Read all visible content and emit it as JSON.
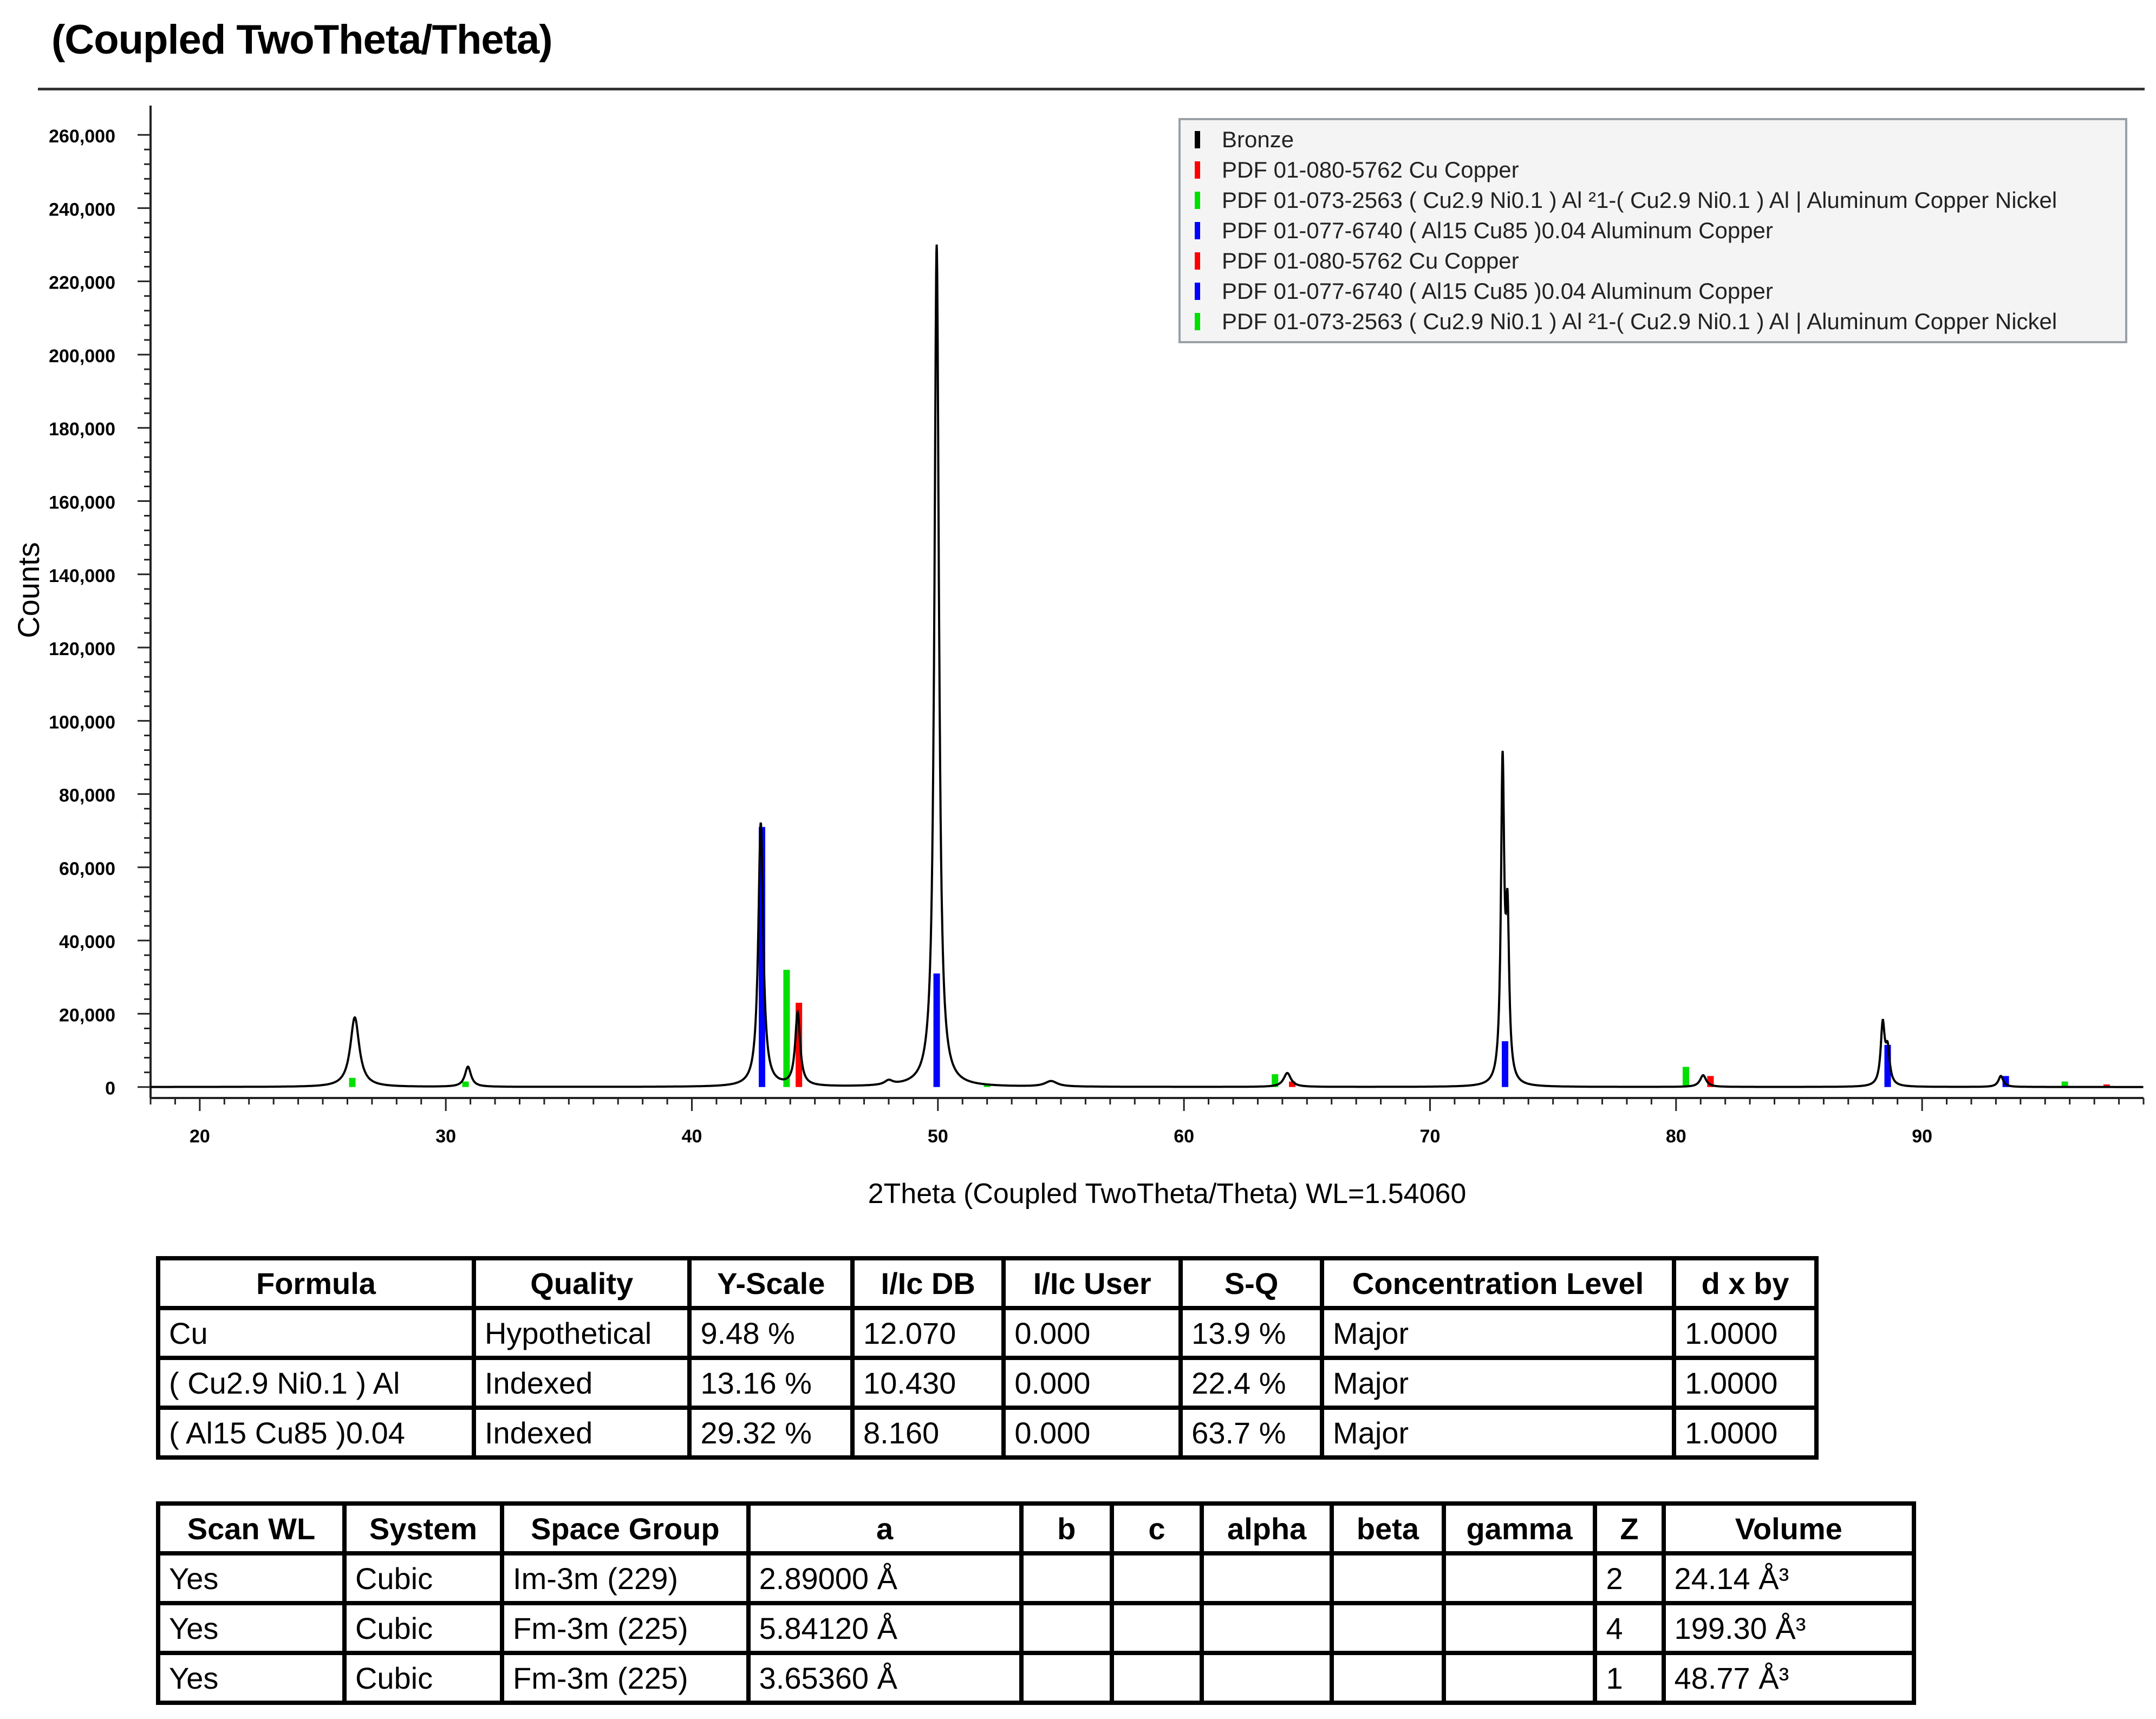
{
  "page_title": "(Coupled TwoTheta/Theta)",
  "chart_data": {
    "type": "line",
    "title": "(Coupled TwoTheta/Theta)",
    "xlabel": "2Theta (Coupled TwoTheta/Theta) WL=1.54060",
    "ylabel": "Counts",
    "xlim": [
      18,
      99
    ],
    "ylim": [
      -3000,
      268000
    ],
    "x_ticks": [
      20,
      30,
      40,
      50,
      60,
      70,
      80,
      90
    ],
    "y_ticks": [
      0,
      20000,
      40000,
      60000,
      80000,
      100000,
      120000,
      140000,
      160000,
      180000,
      200000,
      220000,
      240000,
      260000
    ],
    "y_tick_labels": [
      "0",
      "20,000",
      "40,000",
      "60,000",
      "80,000",
      "100,000",
      "120,000",
      "140,000",
      "160,000",
      "180,000",
      "200,000",
      "220,000",
      "240,000",
      "260,000"
    ],
    "legend_position": "top-right",
    "legend": [
      {
        "label": "Bronze",
        "color": "#000000"
      },
      {
        "label": "PDF 01-080-5762 Cu Copper",
        "color": "#ff0000"
      },
      {
        "label": "PDF 01-073-2563 ( Cu2.9 Ni0.1 ) Al ²1-( Cu2.9 Ni0.1 ) Al | Aluminum Copper Nickel",
        "color": "#00e000"
      },
      {
        "label": "PDF 01-077-6740 ( Al15 Cu85 )0.04 Aluminum Copper",
        "color": "#0000ff"
      },
      {
        "label": "PDF 01-080-5762 Cu Copper",
        "color": "#ff0000"
      },
      {
        "label": "PDF 01-077-6740 ( Al15 Cu85 )0.04 Aluminum Copper",
        "color": "#0000ff"
      },
      {
        "label": "PDF 01-073-2563 ( Cu2.9 Ni0.1 ) Al ²1-( Cu2.9 Ni0.1 ) Al | Aluminum Copper Nickel",
        "color": "#00e000"
      }
    ],
    "series": [
      {
        "name": "Bronze",
        "color": "#000000",
        "baseline": 0,
        "peaks": [
          {
            "x": 26.3,
            "y": 19000,
            "w": 0.22
          },
          {
            "x": 30.9,
            "y": 5500,
            "w": 0.15
          },
          {
            "x": 42.8,
            "y": 72000,
            "w": 0.12
          },
          {
            "x": 44.3,
            "y": 20000,
            "w": 0.12
          },
          {
            "x": 48.0,
            "y": 1200,
            "w": 0.2
          },
          {
            "x": 49.95,
            "y": 230000,
            "w": 0.11
          },
          {
            "x": 54.6,
            "y": 1500,
            "w": 0.3
          },
          {
            "x": 64.2,
            "y": 3800,
            "w": 0.18
          },
          {
            "x": 72.95,
            "y": 86000,
            "w": 0.08
          },
          {
            "x": 73.15,
            "y": 42000,
            "w": 0.08
          },
          {
            "x": 81.1,
            "y": 3200,
            "w": 0.15
          },
          {
            "x": 88.4,
            "y": 16500,
            "w": 0.1
          },
          {
            "x": 88.6,
            "y": 9000,
            "w": 0.1
          },
          {
            "x": 93.2,
            "y": 3000,
            "w": 0.12
          }
        ]
      },
      {
        "name": "PDF 01-080-5762 Cu Copper",
        "color": "#ff0000",
        "sticks": [
          {
            "x": 44.35,
            "y": 23000
          },
          {
            "x": 64.4,
            "y": 1500
          },
          {
            "x": 81.4,
            "y": 3000
          },
          {
            "x": 97.5,
            "y": 700
          }
        ]
      },
      {
        "name": "PDF 01-073-2563 ( Cu2.9 Ni0.1 ) Al ²1-( Cu2.9 Ni0.1 ) Al | Aluminum Copper Nickel",
        "color": "#00e000",
        "sticks": [
          {
            "x": 26.2,
            "y": 2500
          },
          {
            "x": 30.8,
            "y": 1500
          },
          {
            "x": 43.85,
            "y": 32000
          },
          {
            "x": 52.0,
            "y": 600
          },
          {
            "x": 63.7,
            "y": 3500
          },
          {
            "x": 80.4,
            "y": 5500
          },
          {
            "x": 95.8,
            "y": 1500
          }
        ]
      },
      {
        "name": "PDF 01-077-6740 ( Al15 Cu85 )0.04 Aluminum Copper",
        "color": "#0000ff",
        "sticks": [
          {
            "x": 42.85,
            "y": 71000
          },
          {
            "x": 49.95,
            "y": 31000
          },
          {
            "x": 73.05,
            "y": 12500
          },
          {
            "x": 88.6,
            "y": 11500
          },
          {
            "x": 93.4,
            "y": 3000
          }
        ]
      }
    ]
  },
  "table1": {
    "headers": [
      "Formula",
      "Quality",
      "Y-Scale",
      "I/Ic DB",
      "I/Ic User",
      "S-Q",
      "Concentration Level",
      "d x by"
    ],
    "rows": [
      [
        "Cu",
        "Hypothetical",
        "9.48 %",
        "12.070",
        "0.000",
        "13.9 %",
        "Major",
        "1.0000"
      ],
      [
        "( Cu2.9 Ni0.1 ) Al",
        "Indexed",
        "13.16 %",
        "10.430",
        "0.000",
        "22.4 %",
        "Major",
        "1.0000"
      ],
      [
        "( Al15 Cu85 )0.04",
        "Indexed",
        "29.32 %",
        "8.160",
        "0.000",
        "63.7 %",
        "Major",
        "1.0000"
      ]
    ]
  },
  "table2": {
    "headers": [
      "Scan WL",
      "System",
      "Space Group",
      "a",
      "b",
      "c",
      "alpha",
      "beta",
      "gamma",
      "Z",
      "Volume"
    ],
    "rows": [
      [
        "Yes",
        "Cubic",
        "Im-3m (229)",
        "2.89000 Å",
        "",
        "",
        "",
        "",
        "",
        "2",
        "24.14 Å³"
      ],
      [
        "Yes",
        "Cubic",
        "Fm-3m (225)",
        "5.84120 Å",
        "",
        "",
        "",
        "",
        "",
        "4",
        "199.30 Å³"
      ],
      [
        "Yes",
        "Cubic",
        "Fm-3m (225)",
        "3.65360 Å",
        "",
        "",
        "",
        "",
        "",
        "1",
        "48.77 Å³"
      ]
    ]
  }
}
